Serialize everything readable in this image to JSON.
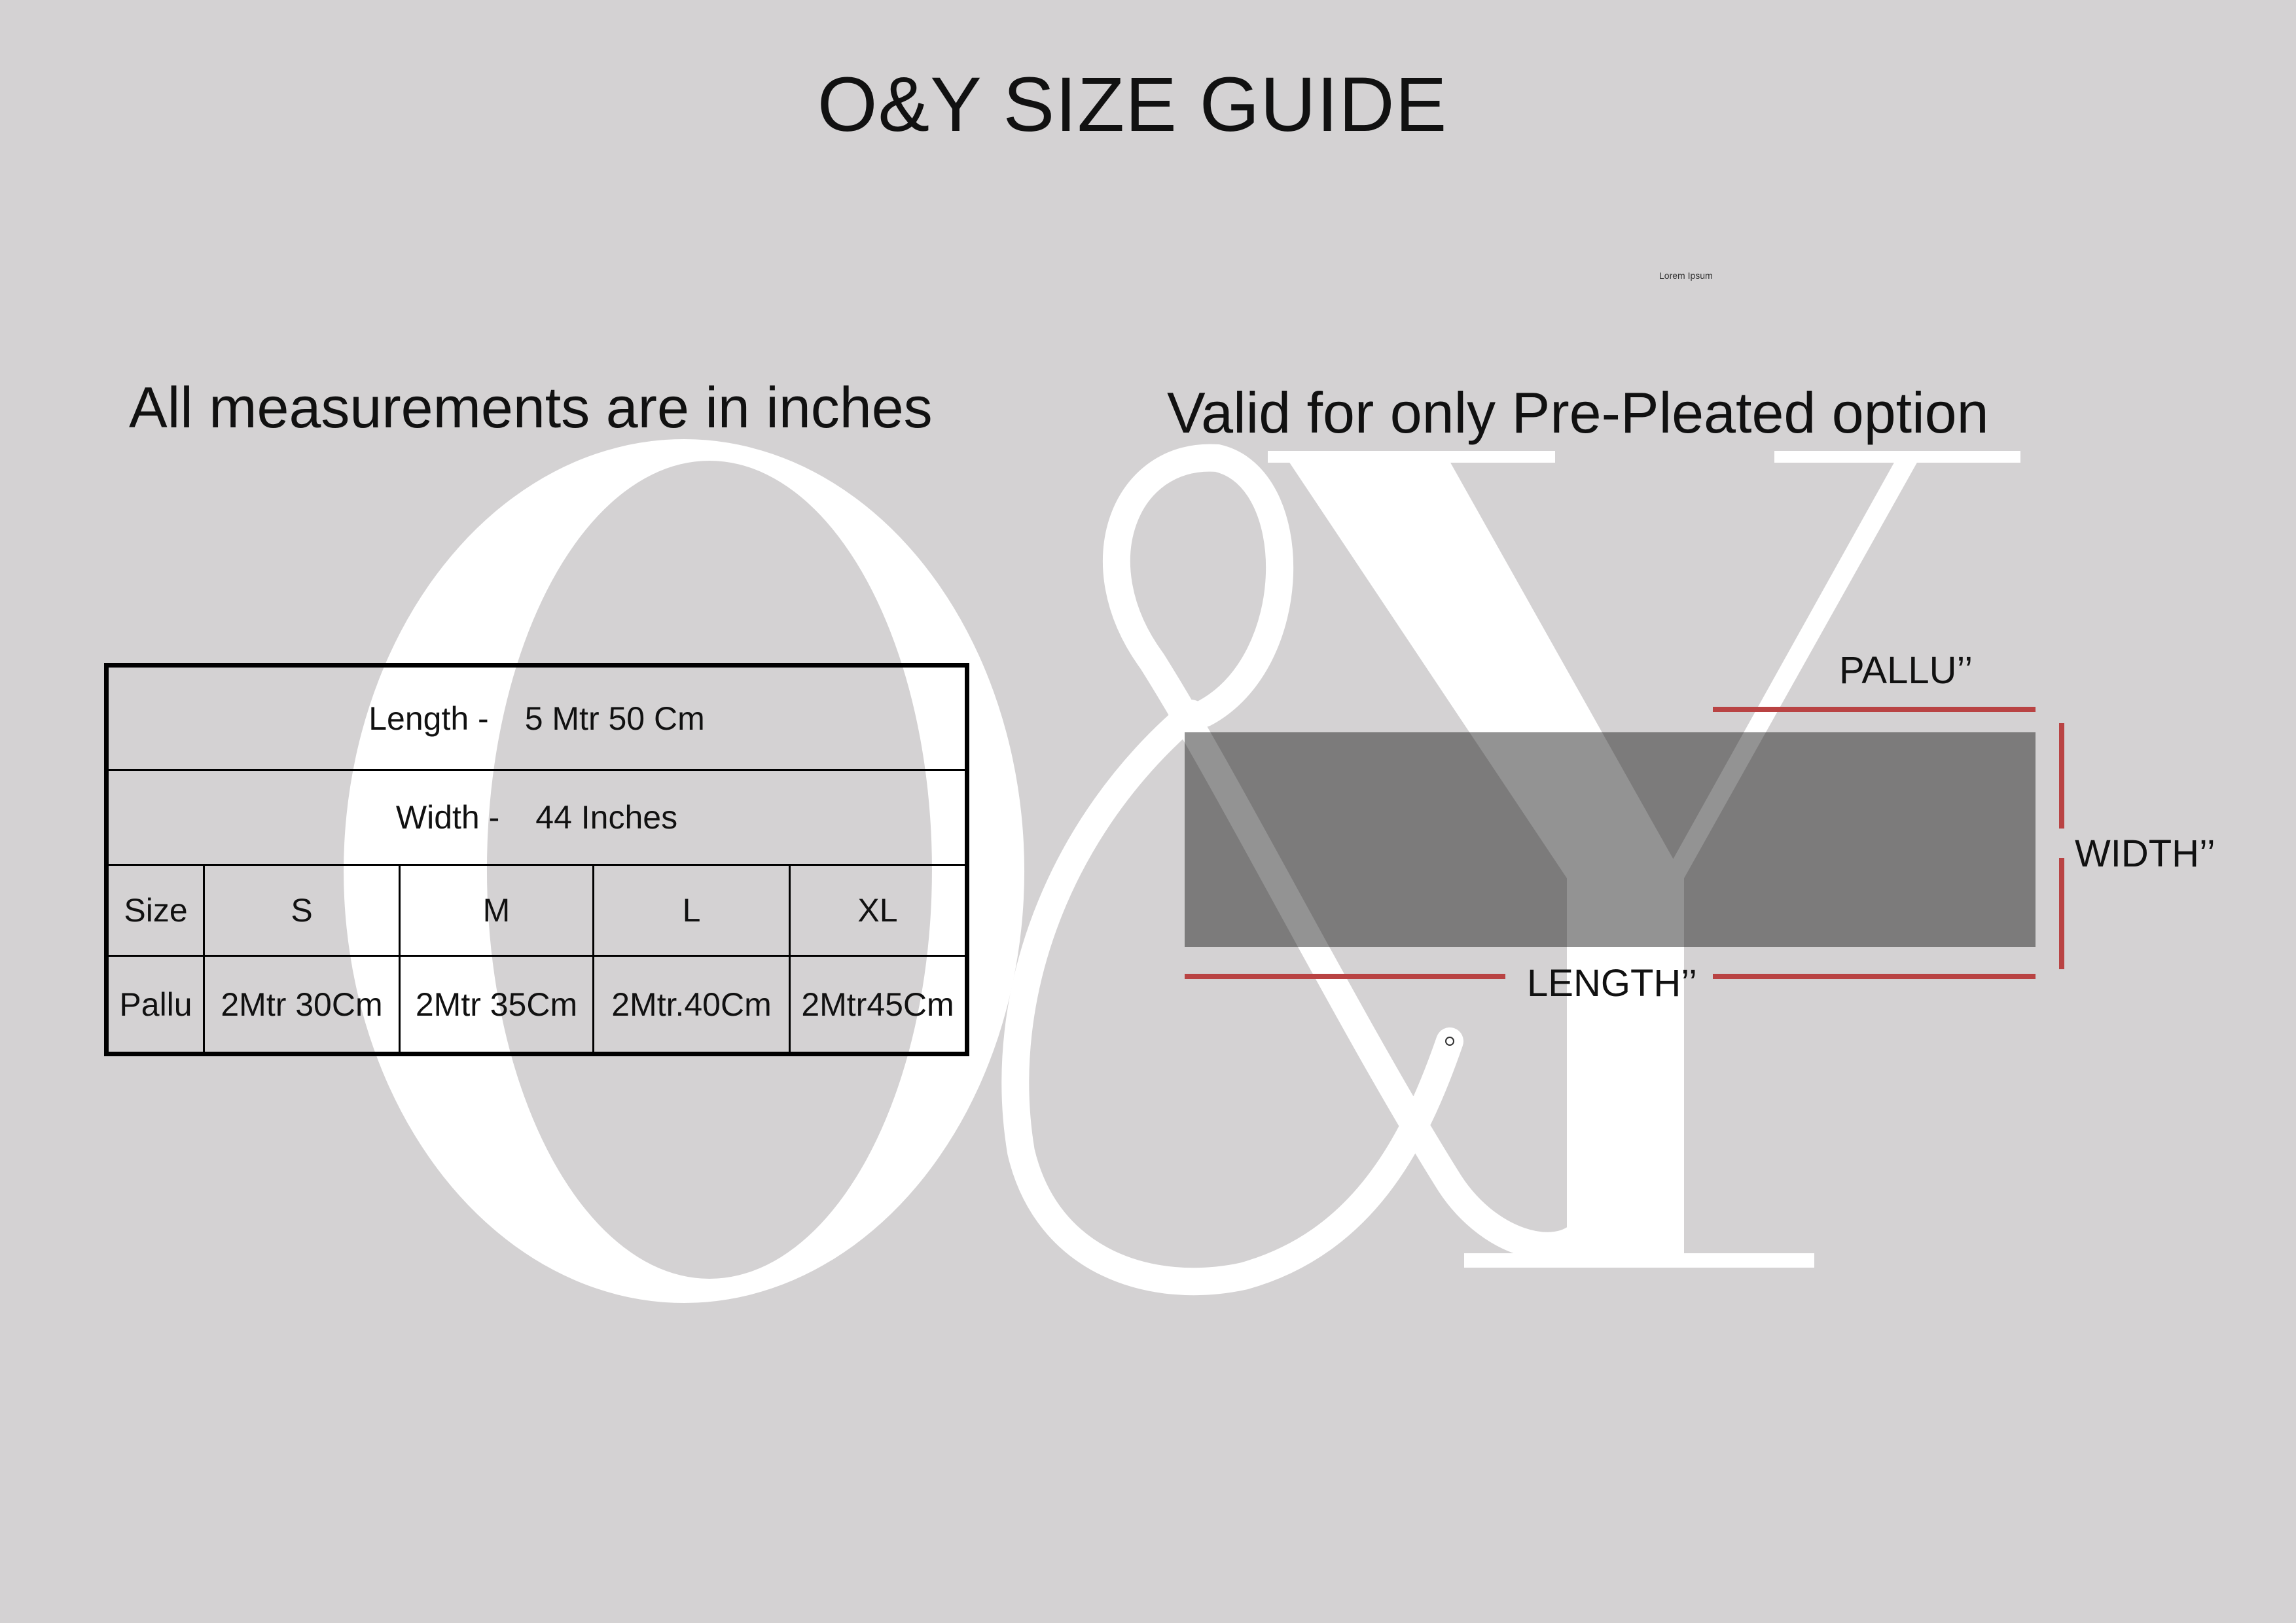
{
  "title": "O&Y SIZE GUIDE",
  "placeholder_text": "Lorem Ipsum",
  "note_left": "All measurements are in inches",
  "note_right": "Valid for only Pre-Pleated option",
  "watermark": {
    "letters": [
      "O",
      "&",
      "Y"
    ],
    "color": "#ffffff"
  },
  "table": {
    "length_label": "Length -",
    "length_value": "5 Mtr 50 Cm",
    "width_label": "Width -",
    "width_value": "44 Inches",
    "size_header": "Size",
    "sizes": [
      "S",
      "M",
      "L",
      "XL"
    ],
    "pallu_header": "Pallu",
    "pallu_values": [
      "2Mtr 30Cm",
      "2Mtr 35Cm",
      "2Mtr.40Cm",
      "2Mtr45Cm"
    ]
  },
  "diagram": {
    "pallu_label": "PALLU’’",
    "width_label": "WIDTH’’",
    "length_label": "LENGTH’’",
    "line_color": "#b94343",
    "fabric_color": "#7c7b7b"
  }
}
